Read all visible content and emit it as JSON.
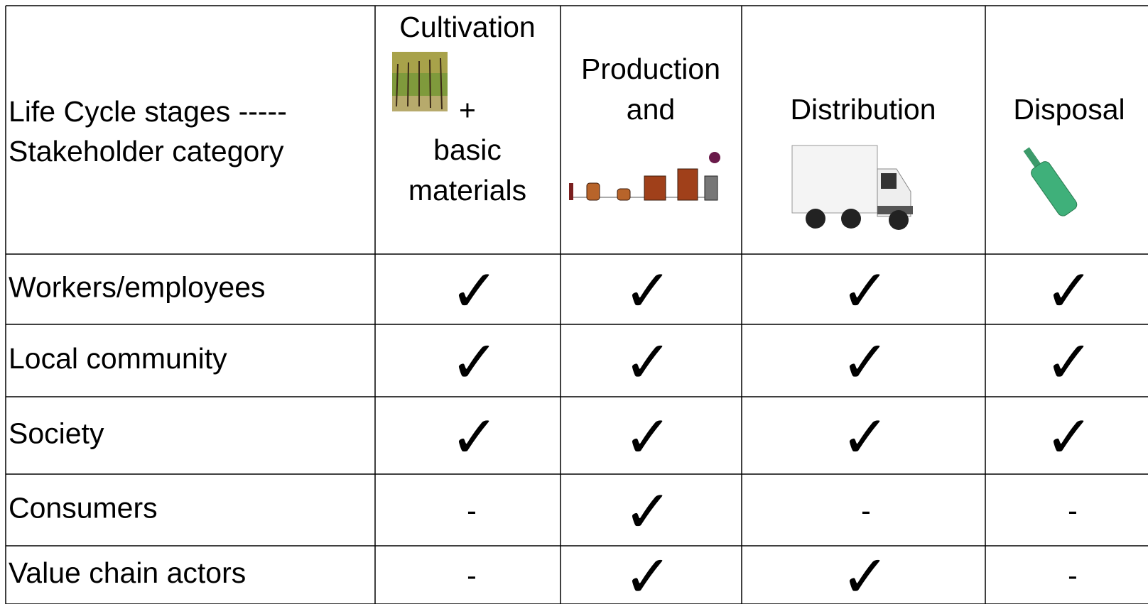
{
  "header": {
    "stub": [
      "Life Cycle stages -----",
      "Stakeholder category"
    ],
    "columns": [
      {
        "lines": [
          "Cultivation",
          "+",
          "basic",
          "materials"
        ]
      },
      {
        "lines": [
          "Production",
          "and"
        ]
      },
      {
        "lines": [
          "Distribution"
        ]
      },
      {
        "lines": [
          "Disposal"
        ]
      }
    ]
  },
  "rows": [
    {
      "label": "Workers/employees",
      "cells": [
        "✓",
        "✓",
        "✓",
        "✓"
      ]
    },
    {
      "label": "Local community",
      "cells": [
        "✓",
        "✓",
        "✓",
        "✓"
      ]
    },
    {
      "label": "Society",
      "cells": [
        "✓",
        "✓",
        "✓",
        "✓"
      ]
    },
    {
      "label": "Consumers",
      "cells": [
        "-",
        "✓",
        "-",
        "-"
      ]
    },
    {
      "label": "Value chain actors",
      "cells": [
        "-",
        "✓",
        "✓",
        "-"
      ]
    }
  ]
}
